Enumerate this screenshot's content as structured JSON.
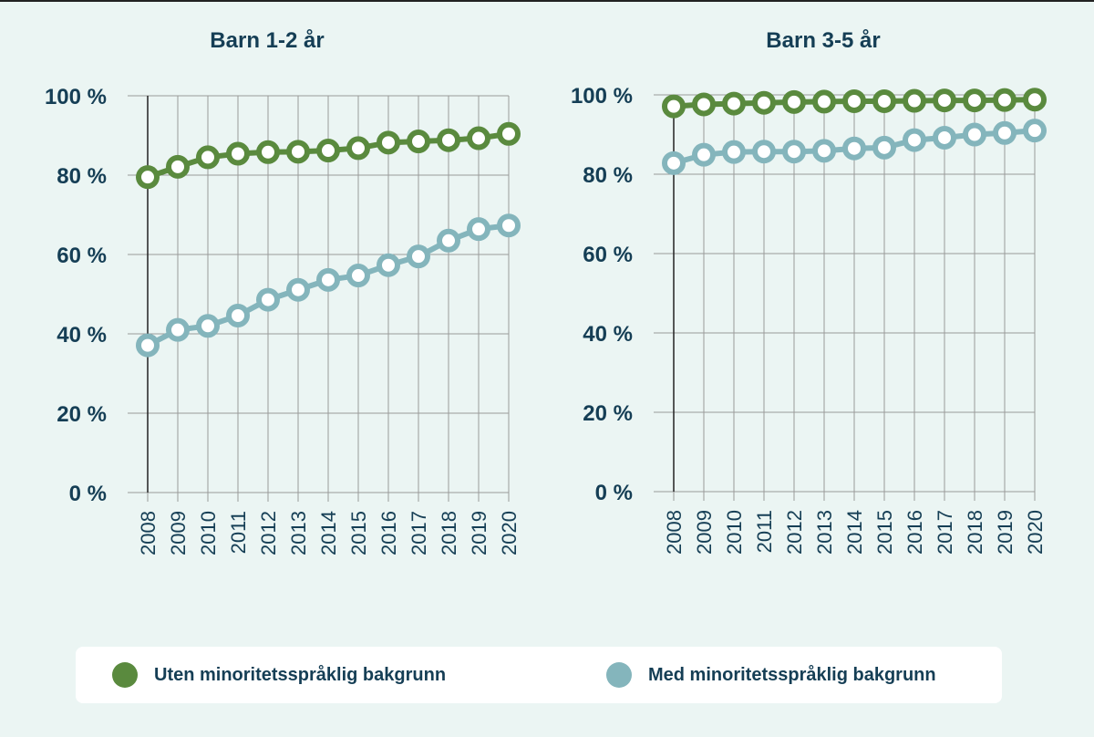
{
  "colors": {
    "background": "#ebf5f3",
    "text": "#153e55",
    "grid": "#9a9a9a",
    "series_uten": "#5a8a3e",
    "series_med": "#84b5bc"
  },
  "legend": {
    "items": [
      {
        "label": "Uten minoritetsspråklig bakgrunn",
        "color": "#5a8a3e"
      },
      {
        "label": "Med minoritetsspråklig bakgrunn",
        "color": "#84b5bc"
      }
    ]
  },
  "chart_data": [
    {
      "type": "line",
      "title": "Barn 1-2 år",
      "categories": [
        "2008",
        "2009",
        "2010",
        "2011",
        "2012",
        "2013",
        "2014",
        "2015",
        "2016",
        "2017",
        "2018",
        "2019",
        "2020"
      ],
      "ylim": [
        0,
        100
      ],
      "yticks": [
        "0 %",
        "20 %",
        "40 %",
        "60 %",
        "80 %",
        "100 %"
      ],
      "grid": true,
      "legend_position": "bottom",
      "series": [
        {
          "name": "Uten minoritetsspråklig bakgrunn",
          "color": "#5a8a3e",
          "values": [
            79.5,
            82.1,
            84.5,
            85.4,
            85.8,
            85.9,
            86.2,
            86.8,
            88.2,
            88.5,
            88.8,
            89.3,
            90.4
          ]
        },
        {
          "name": "Med minoritetsspråklig bakgrunn",
          "color": "#84b5bc",
          "values": [
            37.1,
            41.0,
            42.0,
            44.6,
            48.6,
            51.1,
            53.6,
            54.7,
            57.3,
            59.5,
            63.5,
            66.4,
            67.3
          ]
        }
      ]
    },
    {
      "type": "line",
      "title": "Barn 3-5 år",
      "categories": [
        "2008",
        "2009",
        "2010",
        "2011",
        "2012",
        "2013",
        "2014",
        "2015",
        "2016",
        "2017",
        "2018",
        "2019",
        "2020"
      ],
      "ylim": [
        0,
        100
      ],
      "yticks": [
        "0 %",
        "20 %",
        "40 %",
        "60 %",
        "80 %",
        "100 %"
      ],
      "grid": true,
      "legend_position": "bottom",
      "series": [
        {
          "name": "Uten minoritetsspråklig bakgrunn",
          "color": "#5a8a3e",
          "values": [
            97.1,
            97.6,
            97.8,
            98.0,
            98.2,
            98.3,
            98.4,
            98.4,
            98.5,
            98.6,
            98.6,
            98.7,
            98.8
          ]
        },
        {
          "name": "Med minoritetsspråklig bakgrunn",
          "color": "#84b5bc",
          "values": [
            82.8,
            84.9,
            85.6,
            85.7,
            85.7,
            85.9,
            86.5,
            86.7,
            88.6,
            89.2,
            90.0,
            90.4,
            91.0
          ]
        }
      ]
    }
  ]
}
